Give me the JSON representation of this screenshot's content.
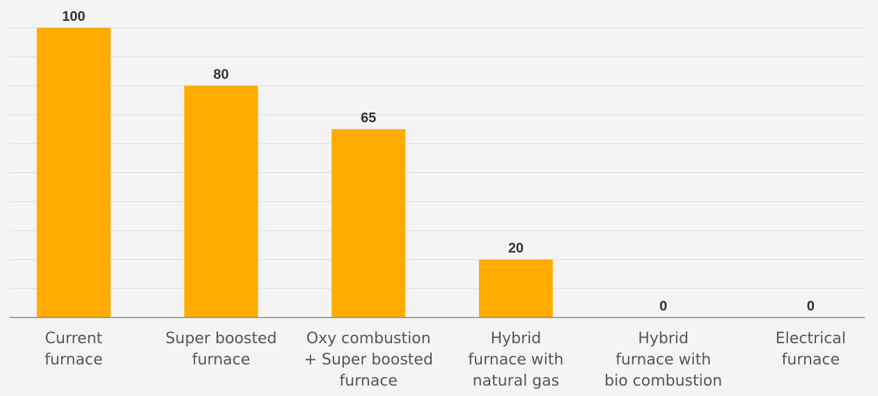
{
  "chart_data": {
    "type": "bar",
    "categories": [
      [
        "Current",
        "furnace"
      ],
      [
        "Super boosted",
        "furnace"
      ],
      [
        "Oxy combustion",
        "+ Super boosted",
        "furnace"
      ],
      [
        "Hybrid",
        "furnace with",
        "natural gas"
      ],
      [
        "Hybrid",
        "furnace with",
        "bio combustion"
      ],
      [
        "Electrical",
        "furnace"
      ]
    ],
    "values": [
      100,
      80,
      65,
      20,
      0,
      0
    ],
    "data_labels": [
      "100",
      "80",
      "65",
      "20",
      "0",
      "0"
    ],
    "ylim": [
      0,
      100
    ],
    "grid": true,
    "bar_color": "#ffab00",
    "grid_color": "#dcdcdc",
    "axis_color": "#8a8a8a"
  }
}
